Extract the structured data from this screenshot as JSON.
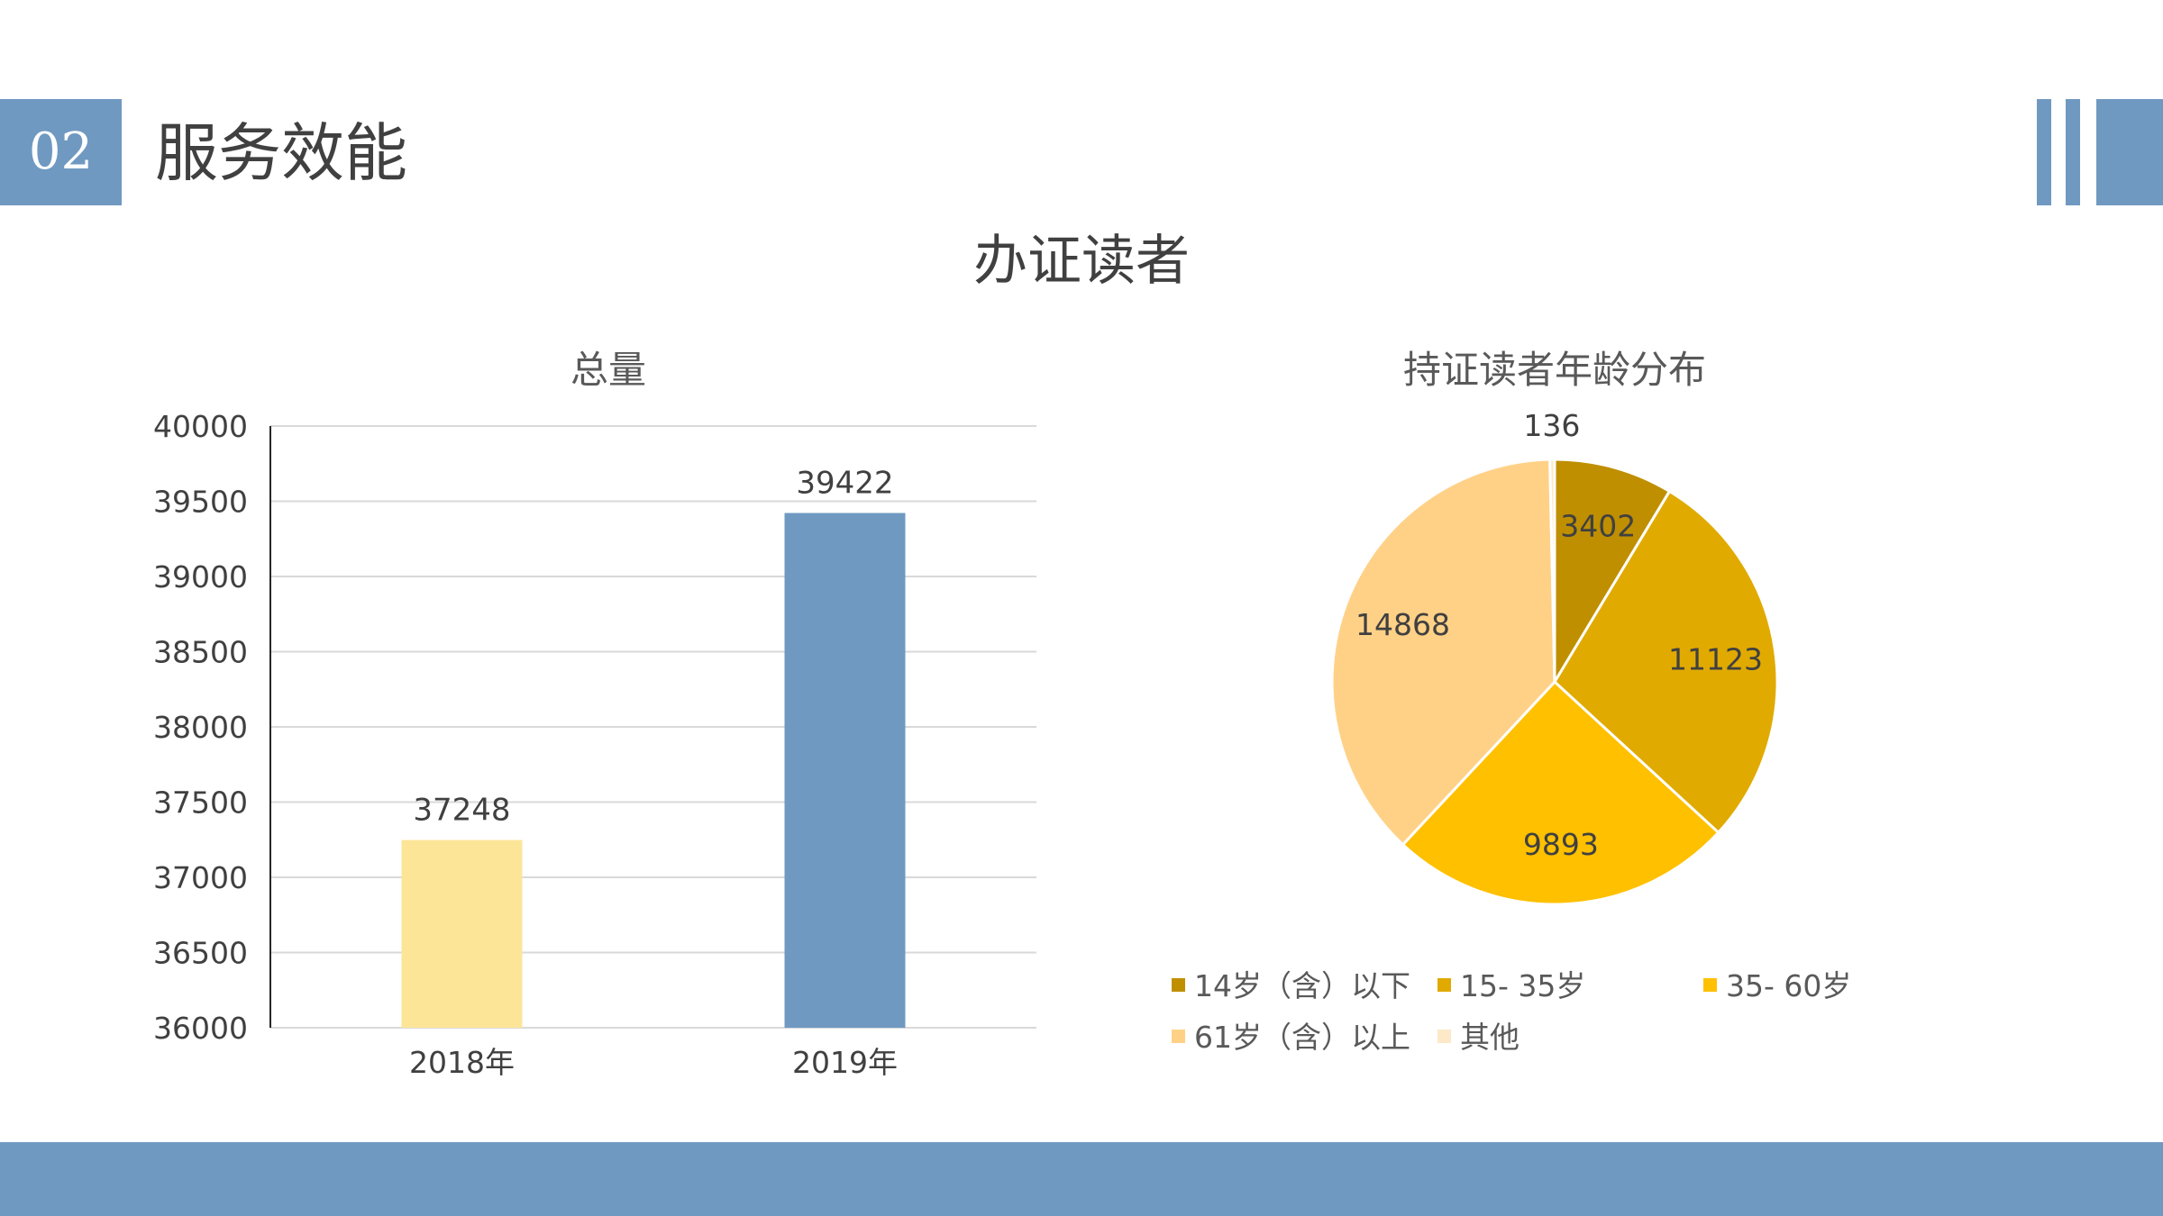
{
  "header": {
    "section_number": "02",
    "section_title": "服务效能"
  },
  "main_title": "办证读者",
  "colors": {
    "accent": "#7099c1",
    "bar_2018": "#fde598",
    "bar_2019": "#7099c1",
    "pie": [
      "#bf8f00",
      "#e0aa00",
      "#ffc000",
      "#ffd187",
      "#fde9c8"
    ]
  },
  "chart_data": [
    {
      "type": "bar",
      "title": "总量",
      "categories": [
        "2018年",
        "2019年"
      ],
      "values": [
        37248,
        39422
      ],
      "ylim": [
        36000,
        40000
      ],
      "yticks": [
        36000,
        36500,
        37000,
        37500,
        38000,
        38500,
        39000,
        39500,
        40000
      ],
      "grid": true,
      "data_labels": true
    },
    {
      "type": "pie",
      "title": "持证读者年龄分布",
      "categories": [
        "14岁（含）以下",
        "15- 35岁",
        "35- 60岁",
        "61岁（含）以上",
        "其他"
      ],
      "values": [
        3402,
        11123,
        9893,
        14868,
        136
      ],
      "legend_position": "bottom",
      "data_labels": true
    }
  ]
}
